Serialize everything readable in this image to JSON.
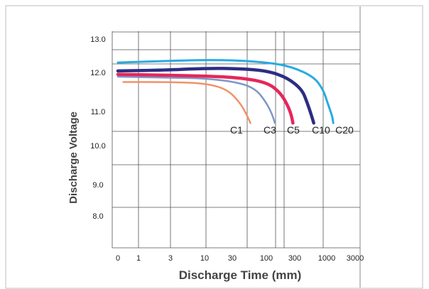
{
  "chart_data": {
    "type": "line",
    "title": "",
    "xlabel": "Discharge Time (mm)",
    "ylabel": "Discharge Voltage",
    "x_scale": "log",
    "x_ticks": [
      "0",
      "1",
      "3",
      "10",
      "30",
      "100",
      "300",
      "1000",
      "3000"
    ],
    "y_ticks": [
      "13.0",
      "12.0",
      "11.0",
      "10.0",
      "9.0",
      "8.0"
    ],
    "ylim": [
      7.6,
      13.3
    ],
    "grid": true,
    "colors": {
      "C1": "#f0926a",
      "C3": "#7e96c8",
      "C5": "#e5275a",
      "C10": "#2c2d84",
      "C20": "#29abe2",
      "grid": "#555555",
      "axis_text": "#444444"
    },
    "series": [
      {
        "name": "C1",
        "color": "#f0926a",
        "width": 2.5,
        "points": [
          [
            0.6,
            11.72
          ],
          [
            3,
            11.72
          ],
          [
            10,
            11.68
          ],
          [
            20,
            11.5
          ],
          [
            30,
            11.1
          ],
          [
            40,
            10.75
          ],
          [
            47,
            10.5
          ]
        ]
      },
      {
        "name": "C3",
        "color": "#7e96c8",
        "width": 2.5,
        "points": [
          [
            0.5,
            11.88
          ],
          [
            3,
            11.85
          ],
          [
            10,
            11.83
          ],
          [
            30,
            11.7
          ],
          [
            60,
            11.5
          ],
          [
            90,
            11.15
          ],
          [
            120,
            10.8
          ],
          [
            140,
            10.5
          ]
        ]
      },
      {
        "name": "C5",
        "color": "#e5275a",
        "width": 4.5,
        "points": [
          [
            0.5,
            11.95
          ],
          [
            3,
            11.92
          ],
          [
            10,
            11.9
          ],
          [
            30,
            11.85
          ],
          [
            100,
            11.7
          ],
          [
            180,
            11.4
          ],
          [
            250,
            11.05
          ],
          [
            300,
            10.75
          ],
          [
            320,
            10.5
          ]
        ]
      },
      {
        "name": "C10",
        "color": "#2c2d84",
        "width": 4.5,
        "points": [
          [
            0.5,
            12.05
          ],
          [
            3,
            12.08
          ],
          [
            10,
            12.13
          ],
          [
            30,
            12.12
          ],
          [
            100,
            12.05
          ],
          [
            250,
            11.85
          ],
          [
            450,
            11.5
          ],
          [
            550,
            11.1
          ],
          [
            650,
            10.7
          ],
          [
            700,
            10.5
          ]
        ]
      },
      {
        "name": "C20",
        "color": "#29abe2",
        "width": 3,
        "points": [
          [
            0.5,
            12.3
          ],
          [
            3,
            12.35
          ],
          [
            10,
            12.38
          ],
          [
            30,
            12.36
          ],
          [
            100,
            12.3
          ],
          [
            300,
            12.18
          ],
          [
            700,
            11.88
          ],
          [
            1000,
            11.5
          ],
          [
            1200,
            11.05
          ],
          [
            1400,
            10.7
          ],
          [
            1450,
            10.5
          ]
        ]
      }
    ],
    "labels": [
      "C1",
      "C3",
      "C5",
      "C10",
      "C20"
    ]
  }
}
